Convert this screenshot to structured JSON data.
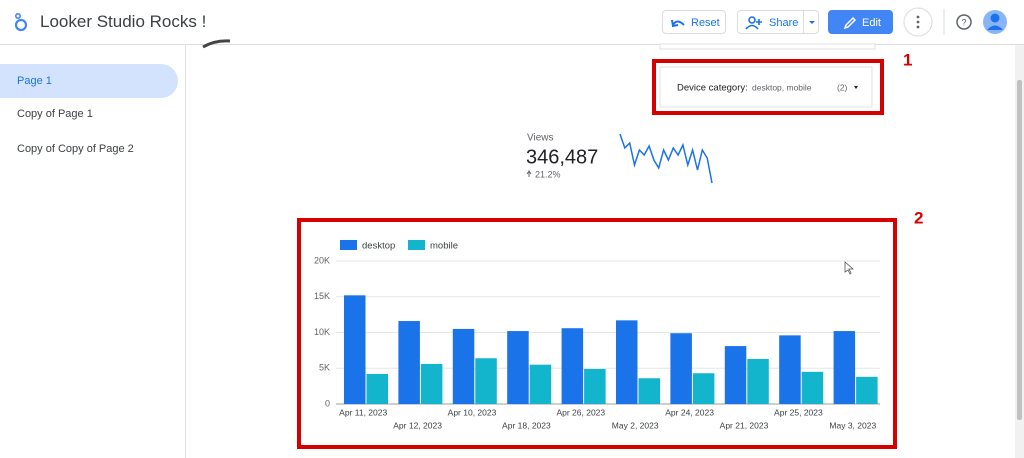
{
  "header": {
    "title": "Looker Studio Rocks !",
    "buttons": [
      "Reset",
      "Share",
      "Edit"
    ]
  },
  "sidebar": {
    "pages": [
      "Page 1",
      "Copy of Page 1",
      "Copy of Copy of Page 2"
    ]
  },
  "filter": {
    "label": "Device category:",
    "selection": "desktop, mobile",
    "count": "(2)"
  },
  "scorecard": {
    "label": "Views",
    "value": "346,487",
    "change": "21.2%",
    "sparkline": [
      49,
      35,
      40,
      18,
      33,
      28,
      37,
      23,
      15,
      33,
      23,
      35,
      28,
      38,
      18,
      33,
      13,
      33,
      25,
      0
    ]
  },
  "annotations": [
    "1",
    "2"
  ],
  "chart_data": {
    "type": "bar",
    "categories": [
      "Apr 11, 2023",
      "Apr 12, 2023",
      "Apr 10, 2023",
      "Apr 18, 2023",
      "Apr 26, 2023",
      "May 2, 2023",
      "Apr 24, 2023",
      "Apr 21, 2023",
      "Apr 25, 2023",
      "May 3, 2023"
    ],
    "series": [
      {
        "name": "desktop",
        "color": "#1a73e8",
        "values": [
          15200,
          11600,
          10500,
          10200,
          10600,
          11700,
          9900,
          8100,
          9600,
          10200
        ]
      },
      {
        "name": "mobile",
        "color": "#12b5cb",
        "values": [
          4200,
          5600,
          6400,
          5500,
          4900,
          3600,
          4300,
          6300,
          4500,
          3800
        ]
      }
    ],
    "ylim": [
      0,
      20000
    ],
    "yticks": [
      0,
      {
        "value": 5000,
        "label": "5K"
      },
      {
        "value": 10000,
        "label": "10K"
      },
      {
        "value": 15000,
        "label": "15K"
      },
      {
        "value": 20000,
        "label": "20K"
      }
    ],
    "grid": true,
    "legend": "top-left"
  }
}
